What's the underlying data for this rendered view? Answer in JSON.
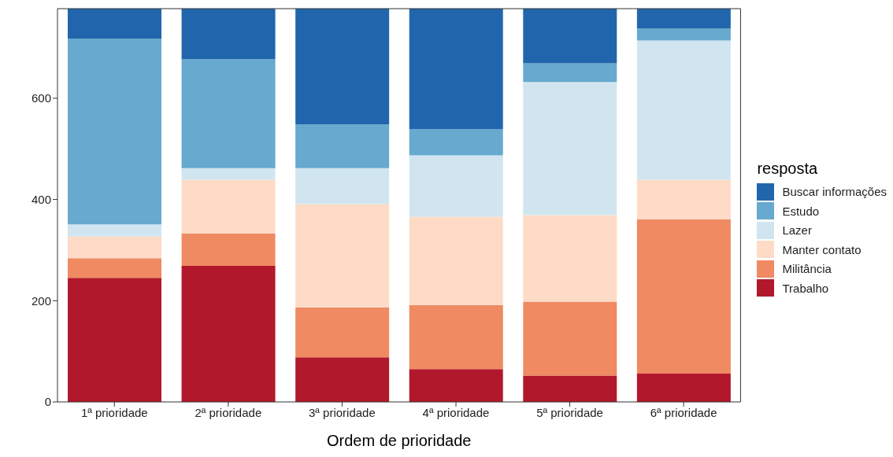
{
  "chart_data": {
    "type": "bar",
    "stacked": true,
    "xlabel": "Ordem de prioridade",
    "legend_title": "resposta",
    "categories": [
      "1ª prioridade",
      "2ª prioridade",
      "3ª prioridade",
      "4ª prioridade",
      "5ª prioridade",
      "6ª prioridade"
    ],
    "series": [
      {
        "name": "Trabalho",
        "color": "#b2182b",
        "values": [
          245,
          269,
          88,
          65,
          52,
          56
        ]
      },
      {
        "name": "Militância",
        "color": "#ef8a62",
        "values": [
          39,
          64,
          99,
          126,
          146,
          305
        ]
      },
      {
        "name": "Manter contato",
        "color": "#fddbc7",
        "values": [
          43,
          106,
          204,
          175,
          171,
          78
        ]
      },
      {
        "name": "Lazer",
        "color": "#d1e5f0",
        "values": [
          24,
          23,
          71,
          121,
          263,
          275
        ]
      },
      {
        "name": "Estudo",
        "color": "#67a9cf",
        "values": [
          367,
          215,
          86,
          52,
          37,
          24
        ]
      },
      {
        "name": "Buscar informações",
        "color": "#2166ac",
        "values": [
          59,
          100,
          229,
          238,
          108,
          39
        ]
      }
    ],
    "ylim": [
      0,
      777
    ],
    "yticks": [
      0,
      200,
      400,
      600
    ],
    "grid": false,
    "legend": "right"
  }
}
